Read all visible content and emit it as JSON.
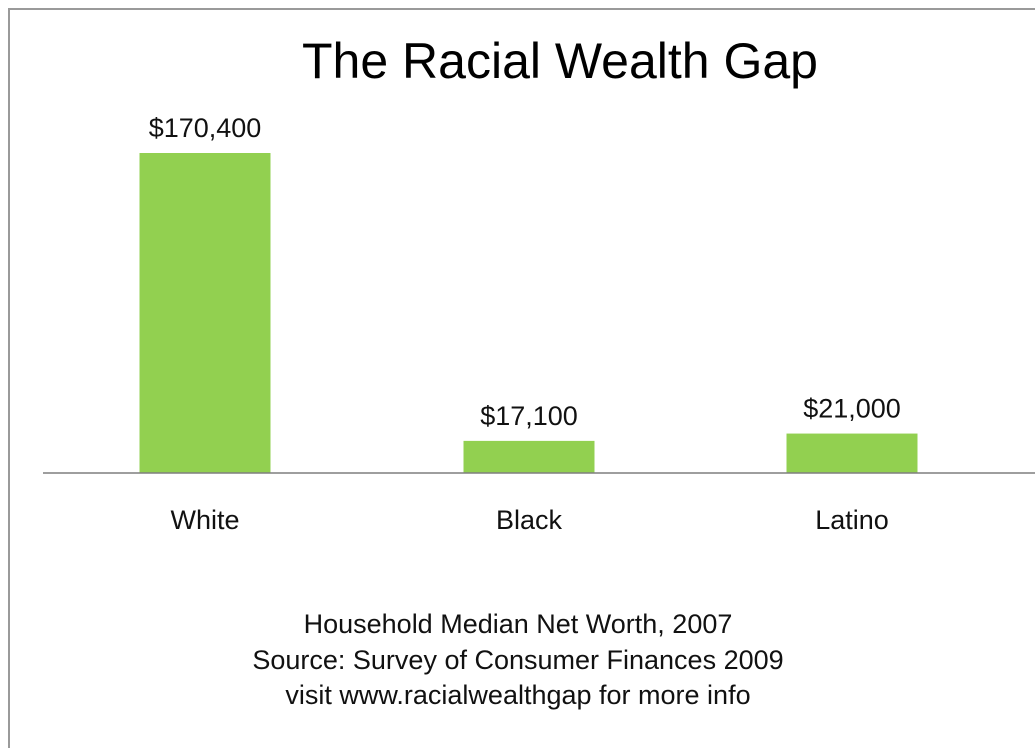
{
  "chart_data": {
    "type": "bar",
    "title": "The Racial Wealth Gap",
    "categories": [
      "White",
      "Black",
      "Latino"
    ],
    "values": [
      170400,
      17100,
      21000
    ],
    "value_labels": [
      "$170,400",
      "$17,100",
      "$21,000"
    ],
    "ylim": [
      0,
      170400
    ],
    "grid": false,
    "bar_color": "#92d050",
    "axis_color": "#7f7f7f"
  },
  "caption": {
    "lines": [
      "Household Median Net Worth, 2007",
      "Source: Survey of Consumer Finances 2009",
      "visit www.racialwealthgap for more info"
    ]
  }
}
